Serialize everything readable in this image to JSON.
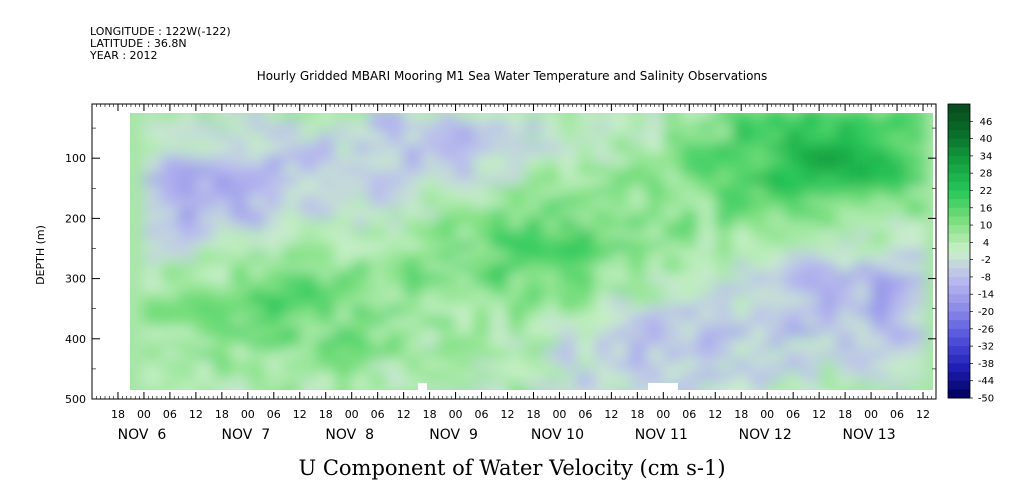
{
  "header": {
    "longitude": "LONGITUDE : 122W(-122)",
    "latitude": "LATITUDE : 36.8N",
    "year": "YEAR : 2012"
  },
  "chart_data": {
    "type": "heatmap",
    "title": "Hourly Gridded MBARI Mooring M1 Sea Water Temperature and Salinity Observations",
    "bottom_title": "U Component of Water Velocity (cm s-1)",
    "ylabel": "DEPTH (m)",
    "y_ticks": [
      "100",
      "200",
      "300",
      "400",
      "500"
    ],
    "ylim": [
      500,
      10
    ],
    "x_hour_ticks": [
      "18",
      "00",
      "06",
      "12",
      "18",
      "00",
      "06",
      "12",
      "18",
      "00",
      "06",
      "12",
      "18",
      "00",
      "06",
      "12",
      "18",
      "00",
      "06",
      "12",
      "18",
      "00",
      "06",
      "12",
      "18",
      "00",
      "06",
      "12",
      "18",
      "00",
      "06",
      "12"
    ],
    "x_day_labels": [
      "NOV  6",
      "NOV  7",
      "NOV  8",
      "NOV  9",
      "NOV 10",
      "NOV 11",
      "NOV 12",
      "NOV 13"
    ],
    "x_range": [
      "2012-11-05 12:00",
      "2012-11-13 15:00"
    ],
    "data_extent": {
      "time_start": "2012-11-06 00:00",
      "time_end": "2012-11-13 12:00",
      "depth_top": 20,
      "depth_bottom": 490
    },
    "colorbar": {
      "levels": [
        "46",
        "40",
        "34",
        "28",
        "22",
        "16",
        "10",
        "4",
        "-2",
        "-8",
        "-14",
        "-20",
        "-26",
        "-32",
        "-38",
        "-44",
        "-50"
      ],
      "min": -50,
      "max": 52,
      "step": 3,
      "colors_low_to_high": [
        "#00005a",
        "#1e1eb4",
        "#5050dc",
        "#8a8ae8",
        "#b9b9f0",
        "#caf0ca",
        "#7ee07e",
        "#28c85a",
        "#14a040",
        "#0a6e2a",
        "#064a1c"
      ]
    },
    "features": [
      {
        "desc": "negative (blue) core",
        "time": "2012-11-06 12:00",
        "depth": 170,
        "value": -16
      },
      {
        "desc": "negative (blue) band near surface",
        "time": "2012-11-08 20:00",
        "depth": 90,
        "value": -12
      },
      {
        "desc": "negative (blue) lower column",
        "time": "2012-11-10 22:00",
        "depth": 400,
        "value": -10
      },
      {
        "desc": "negative (blue) deep",
        "time": "2012-11-13 00:00",
        "depth": 320,
        "value": -14
      },
      {
        "desc": "positive (green) mid column",
        "time": "2012-11-07 06:00",
        "depth": 320,
        "value": 12
      },
      {
        "desc": "positive (green) mid column",
        "time": "2012-11-09 18:00",
        "depth": 230,
        "value": 14
      },
      {
        "desc": "positive (green) upper",
        "time": "2012-11-12 12:00",
        "depth": 80,
        "value": 22
      }
    ]
  }
}
